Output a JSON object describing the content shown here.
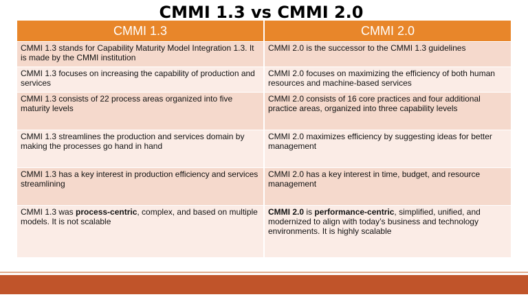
{
  "title": "CMMI 1.3 vs CMMI 2.0",
  "table": {
    "headers": [
      "CMMI 1.3",
      "CMMI 2.0"
    ],
    "rows": [
      {
        "left": "CMMI 1.3 stands for Capability Maturity Model Integration 1.3. It is made by the CMMI institution",
        "right": "CMMI 2.0 is the successor to the CMMI 1.3 guidelines"
      },
      {
        "left": "CMMI 1.3 focuses on increasing the capability of production and services",
        "right": "CMMI 2.0 focuses on maximizing the efficiency of both human resources and machine-based services"
      },
      {
        "left": "CMMI 1.3 consists of 22 process areas organized into five maturity levels",
        "right": "CMMI 2.0 consists of 16 core practices and four additional practice areas, organized into three capability levels"
      },
      {
        "left": "CMMI 1.3 streamlines the production and services domain by making the processes go hand in hand",
        "right": "CMMI 2.0 maximizes efficiency by suggesting ideas for better management"
      },
      {
        "left": "CMMI 1.3 has a key interest in production efficiency and services streamlining",
        "right": "CMMI 2.0 has a key interest in time, budget, and resource management"
      }
    ],
    "last_row": {
      "left_pre": "CMMI 1.3 was ",
      "left_bold": "process-centric",
      "left_post": ", complex, and based on multiple models. It is not scalable",
      "right_bold1": "CMMI 2.0",
      "right_mid": " is ",
      "right_bold2": "performance-centric",
      "right_post": ", simplified, unified, and modernized to align with today’s business and technology environments. It is highly scalable"
    }
  },
  "colors": {
    "header_bg": "#e8862a",
    "row_odd": "#f5d9cc",
    "row_even": "#fbece6",
    "footer": "#c0542a"
  }
}
